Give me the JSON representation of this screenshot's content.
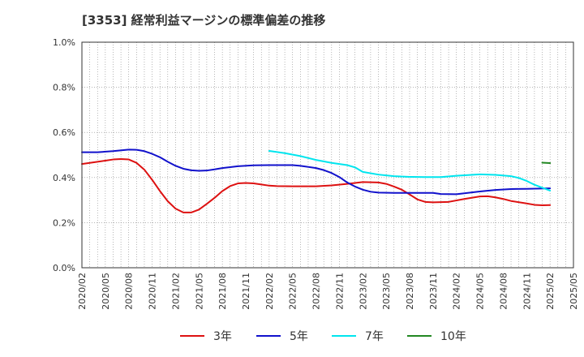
{
  "chart_data": {
    "type": "line",
    "title": "[3353]  経常利益マージンの標準偏差の推移",
    "xlabel": "",
    "ylabel": "",
    "x_ticks": [
      "2020/02",
      "2020/05",
      "2020/08",
      "2020/11",
      "2021/02",
      "2021/05",
      "2021/08",
      "2021/11",
      "2022/02",
      "2022/05",
      "2022/08",
      "2022/11",
      "2023/02",
      "2023/05",
      "2023/08",
      "2023/11",
      "2024/02",
      "2024/05",
      "2024/08",
      "2024/11",
      "2025/02",
      "2025/05"
    ],
    "y_ticks": [
      "0.0%",
      "0.2%",
      "0.4%",
      "0.6%",
      "0.8%",
      "1.0%"
    ],
    "ylim": [
      0,
      1.0
    ],
    "xlim": [
      "2020/02",
      "2025/05"
    ],
    "grid": true,
    "legend_position": "bottom",
    "series": [
      {
        "name": "3年",
        "color": "#dd1111",
        "points": [
          [
            "2020/02",
            0.46
          ],
          [
            "2020/03",
            0.465
          ],
          [
            "2020/04",
            0.47
          ],
          [
            "2020/05",
            0.475
          ],
          [
            "2020/06",
            0.48
          ],
          [
            "2020/07",
            0.482
          ],
          [
            "2020/08",
            0.48
          ],
          [
            "2020/09",
            0.465
          ],
          [
            "2020/10",
            0.435
          ],
          [
            "2020/11",
            0.39
          ],
          [
            "2020/12",
            0.34
          ],
          [
            "2021/01",
            0.295
          ],
          [
            "2021/02",
            0.262
          ],
          [
            "2021/03",
            0.245
          ],
          [
            "2021/04",
            0.245
          ],
          [
            "2021/05",
            0.258
          ],
          [
            "2021/06",
            0.283
          ],
          [
            "2021/07",
            0.31
          ],
          [
            "2021/08",
            0.34
          ],
          [
            "2021/09",
            0.362
          ],
          [
            "2021/10",
            0.374
          ],
          [
            "2021/11",
            0.376
          ],
          [
            "2021/12",
            0.374
          ],
          [
            "2022/01",
            0.369
          ],
          [
            "2022/02",
            0.364
          ],
          [
            "2022/03",
            0.362
          ],
          [
            "2022/05",
            0.361
          ],
          [
            "2022/08",
            0.361
          ],
          [
            "2022/10",
            0.365
          ],
          [
            "2022/12",
            0.372
          ],
          [
            "2023/02",
            0.38
          ],
          [
            "2023/04",
            0.378
          ],
          [
            "2023/05",
            0.372
          ],
          [
            "2023/06",
            0.36
          ],
          [
            "2023/07",
            0.346
          ],
          [
            "2023/08",
            0.325
          ],
          [
            "2023/09",
            0.303
          ],
          [
            "2023/10",
            0.292
          ],
          [
            "2023/11",
            0.29
          ],
          [
            "2024/01",
            0.292
          ],
          [
            "2024/03",
            0.305
          ],
          [
            "2024/05",
            0.316
          ],
          [
            "2024/06",
            0.317
          ],
          [
            "2024/07",
            0.312
          ],
          [
            "2024/08",
            0.305
          ],
          [
            "2024/09",
            0.296
          ],
          [
            "2024/11",
            0.285
          ],
          [
            "2024/12",
            0.279
          ],
          [
            "2025/01",
            0.277
          ],
          [
            "2025/02",
            0.278
          ]
        ]
      },
      {
        "name": "5年",
        "color": "#1111cc",
        "points": [
          [
            "2020/02",
            0.512
          ],
          [
            "2020/04",
            0.512
          ],
          [
            "2020/06",
            0.517
          ],
          [
            "2020/08",
            0.524
          ],
          [
            "2020/09",
            0.523
          ],
          [
            "2020/10",
            0.517
          ],
          [
            "2020/11",
            0.505
          ],
          [
            "2020/12",
            0.49
          ],
          [
            "2021/01",
            0.47
          ],
          [
            "2021/02",
            0.452
          ],
          [
            "2021/03",
            0.439
          ],
          [
            "2021/04",
            0.432
          ],
          [
            "2021/05",
            0.43
          ],
          [
            "2021/06",
            0.431
          ],
          [
            "2021/07",
            0.436
          ],
          [
            "2021/08",
            0.442
          ],
          [
            "2021/10",
            0.45
          ],
          [
            "2021/12",
            0.454
          ],
          [
            "2022/02",
            0.455
          ],
          [
            "2022/05",
            0.455
          ],
          [
            "2022/06",
            0.452
          ],
          [
            "2022/08",
            0.442
          ],
          [
            "2022/09",
            0.433
          ],
          [
            "2022/10",
            0.42
          ],
          [
            "2022/11",
            0.402
          ],
          [
            "2022/12",
            0.378
          ],
          [
            "2023/01",
            0.36
          ],
          [
            "2023/02",
            0.346
          ],
          [
            "2023/03",
            0.337
          ],
          [
            "2023/04",
            0.333
          ],
          [
            "2023/06",
            0.332
          ],
          [
            "2023/11",
            0.332
          ],
          [
            "2023/12",
            0.327
          ],
          [
            "2024/02",
            0.326
          ],
          [
            "2024/03",
            0.33
          ],
          [
            "2024/05",
            0.338
          ],
          [
            "2024/07",
            0.345
          ],
          [
            "2024/09",
            0.349
          ],
          [
            "2024/11",
            0.35
          ],
          [
            "2025/02",
            0.352
          ]
        ]
      },
      {
        "name": "7年",
        "color": "#00e5ee",
        "points": [
          [
            "2022/02",
            0.518
          ],
          [
            "2022/04",
            0.508
          ],
          [
            "2022/06",
            0.495
          ],
          [
            "2022/08",
            0.478
          ],
          [
            "2022/10",
            0.465
          ],
          [
            "2022/12",
            0.455
          ],
          [
            "2023/01",
            0.445
          ],
          [
            "2023/02",
            0.425
          ],
          [
            "2023/04",
            0.413
          ],
          [
            "2023/06",
            0.406
          ],
          [
            "2023/08",
            0.403
          ],
          [
            "2023/10",
            0.402
          ],
          [
            "2023/12",
            0.402
          ],
          [
            "2024/02",
            0.408
          ],
          [
            "2024/05",
            0.414
          ],
          [
            "2024/07",
            0.412
          ],
          [
            "2024/09",
            0.406
          ],
          [
            "2024/10",
            0.398
          ],
          [
            "2024/11",
            0.385
          ],
          [
            "2024/12",
            0.368
          ],
          [
            "2025/01",
            0.355
          ],
          [
            "2025/02",
            0.342
          ]
        ]
      },
      {
        "name": "10年",
        "color": "#228822",
        "points": [
          [
            "2025/01",
            0.466
          ],
          [
            "2025/02",
            0.464
          ]
        ]
      }
    ]
  }
}
